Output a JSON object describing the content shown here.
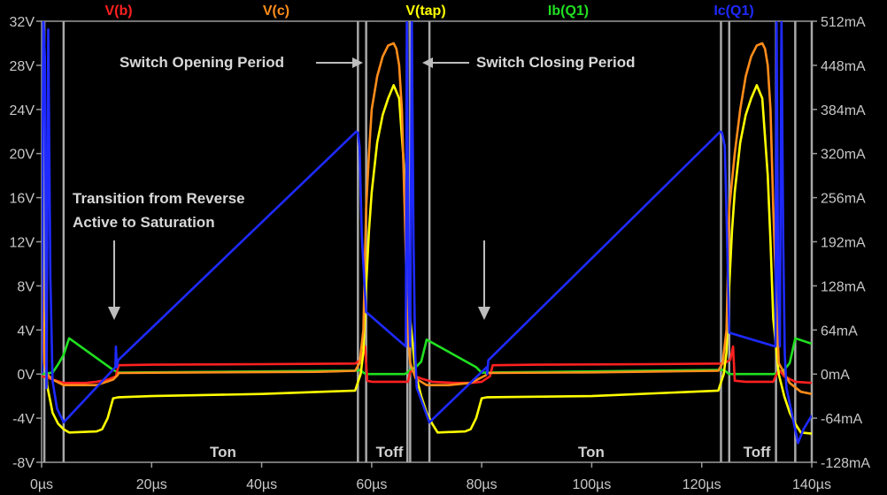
{
  "chart_data": {
    "type": "line",
    "title": "",
    "x_unit": "µs",
    "xlim": [
      0,
      140
    ],
    "x_ticks": [
      "0µs",
      "20µs",
      "40µs",
      "60µs",
      "80µs",
      "100µs",
      "120µs",
      "140µs"
    ],
    "y_left": {
      "ylim": [
        -8,
        32
      ],
      "ticks": [
        "32V",
        "28V",
        "24V",
        "20V",
        "16V",
        "12V",
        "8V",
        "4V",
        "0V",
        "-4V",
        "-8V"
      ]
    },
    "y_right": {
      "ylim": [
        -128,
        512
      ],
      "ticks": [
        "512mA",
        "448mA",
        "384mA",
        "320mA",
        "256mA",
        "192mA",
        "128mA",
        "64mA",
        "0mA",
        "-64mA",
        "-128mA"
      ]
    },
    "grid": false,
    "legend_position": "top",
    "series": [
      {
        "name": "V(b)",
        "color": "#ff2020",
        "axis": "left",
        "x": [
          0,
          1,
          2,
          4,
          6,
          8,
          10,
          12,
          13.5,
          14,
          20,
          40,
          57,
          58,
          58.8,
          59.2,
          60,
          62,
          66,
          66.6,
          67,
          67.5,
          68,
          69,
          71,
          75,
          78,
          80,
          81.5,
          82,
          90,
          110,
          124,
          125.2,
          125.7,
          126,
          128,
          133,
          133.8,
          134.2,
          135,
          137,
          140
        ],
        "y": [
          -0.2,
          -0.3,
          -0.5,
          -0.8,
          -0.8,
          -0.8,
          -0.7,
          -0.5,
          -0.2,
          0.8,
          0.85,
          0.9,
          0.95,
          1.3,
          2.5,
          -0.6,
          -0.7,
          -0.7,
          -0.7,
          -0.7,
          0.2,
          0.3,
          -0.2,
          -0.4,
          -0.7,
          -0.8,
          -0.8,
          -0.7,
          -0.2,
          0.8,
          0.85,
          0.9,
          0.95,
          1.3,
          2.5,
          -0.6,
          -0.7,
          -0.7,
          0.2,
          0.3,
          -0.2,
          -0.7,
          -0.8
        ]
      },
      {
        "name": "V(c)",
        "color": "#ff8c1a",
        "axis": "left",
        "x": [
          0,
          0.5,
          1,
          2,
          4,
          6,
          10,
          13,
          13.8,
          14,
          30,
          50,
          57,
          57.8,
          58.5,
          59,
          59.5,
          60,
          61,
          62,
          63,
          64,
          64.5,
          65,
          65.5,
          66,
          66.5,
          67,
          68,
          70,
          74,
          78,
          80.8,
          81,
          100,
          123,
          123.8,
          124.5,
          125,
          126,
          127,
          128,
          129,
          130,
          131,
          131.5,
          132,
          132.5,
          133,
          134,
          136,
          138,
          140
        ],
        "y": [
          12.5,
          1,
          0,
          -0.5,
          -1,
          -1,
          -1,
          -0.5,
          -0.1,
          0.1,
          0.15,
          0.2,
          0.3,
          1,
          4,
          15,
          20,
          24,
          27,
          28.8,
          29.8,
          30,
          29.5,
          28,
          24,
          15,
          5,
          1,
          -0.4,
          -1,
          -1,
          -0.8,
          -0.1,
          0.1,
          0.15,
          0.3,
          1,
          4,
          15,
          20,
          24,
          27,
          28.8,
          29.8,
          30,
          29.5,
          28,
          24,
          15,
          1,
          -0.8,
          -1.6,
          -1.8
        ]
      },
      {
        "name": "V(tap)",
        "color": "#ffff00",
        "axis": "left",
        "x": [
          0,
          0.5,
          1,
          2,
          3,
          4,
          5,
          10,
          11,
          12,
          13,
          14,
          20,
          40,
          57,
          58,
          58.5,
          59,
          59.5,
          60,
          61,
          62,
          63,
          64,
          65,
          66,
          66.5,
          67,
          68,
          69,
          70,
          71,
          72,
          77,
          78,
          79,
          80,
          81,
          100,
          123,
          124,
          124.5,
          125,
          125.5,
          126,
          127,
          128,
          129,
          130,
          131,
          132,
          132.5,
          133,
          134,
          135,
          136,
          137,
          138,
          140
        ],
        "y": [
          8.5,
          4,
          -1,
          -3.5,
          -4.5,
          -5,
          -5.3,
          -5.2,
          -5,
          -4,
          -2.2,
          -2.1,
          -2,
          -1.8,
          -1.5,
          0,
          2,
          8,
          13,
          16.5,
          21,
          23.5,
          25,
          26.2,
          25,
          18,
          12,
          5,
          0,
          -2,
          -3.5,
          -4.5,
          -5.3,
          -5.2,
          -5,
          -4,
          -2.2,
          -2.1,
          -2,
          -1.5,
          0,
          2,
          8,
          13,
          16.5,
          21,
          23.5,
          25,
          26.2,
          25,
          18,
          12,
          5,
          0,
          -2,
          -3.5,
          -4.5,
          -5.3,
          -5.4
        ]
      },
      {
        "name": "Ib(Q1)",
        "color": "#20e020",
        "axis": "right",
        "x": [
          0,
          2,
          3,
          4,
          5,
          13,
          14,
          57,
          58,
          58.5,
          59,
          66,
          66.5,
          67,
          68,
          69,
          70,
          79,
          80,
          123,
          124,
          125,
          133,
          134,
          135,
          136,
          137,
          140
        ],
        "y": [
          0,
          2,
          14,
          28,
          52,
          6,
          2,
          5,
          6,
          2,
          0,
          0,
          2,
          6,
          10,
          18,
          50,
          10,
          2,
          6,
          6,
          0,
          0,
          2,
          6,
          16,
          52,
          44
        ]
      },
      {
        "name": "Ic(Q1)",
        "color": "#1e2aff",
        "axis": "right",
        "x": [
          0,
          0.3,
          0.6,
          0.9,
          1.2,
          1.6,
          2.0,
          2.8,
          4,
          13.4,
          13.5,
          13.7,
          13.9,
          57.2,
          57.5,
          57.8,
          58.2,
          59,
          66.2,
          66.4,
          66.7,
          67.0,
          67.3,
          67.6,
          67.9,
          68.2,
          70.5,
          80.9,
          81.0,
          81.2,
          123.4,
          123.7,
          124.2,
          124.6,
          125,
          133.4,
          133.6,
          133.9,
          134.2,
          134.5,
          134.8,
          135.1,
          135.4,
          137.5,
          138.5,
          140
        ],
        "y": [
          0,
          520,
          460,
          -20,
          500,
          140,
          -10,
          -50,
          -70,
          10,
          40,
          10,
          20,
          352,
          350,
          330,
          200,
          90,
          40,
          520,
          120,
          40,
          520,
          200,
          30,
          -20,
          -70,
          10,
          0,
          20,
          352,
          350,
          330,
          200,
          60,
          40,
          520,
          120,
          40,
          520,
          200,
          30,
          -20,
          -100,
          -80,
          -60
        ]
      }
    ]
  },
  "annotations": {
    "switch_opening": "Switch Opening Period",
    "switch_closing": "Switch Closing Period",
    "transition_line1": "Transition from Reverse",
    "transition_line2": "Active to Saturation",
    "ton_1": "Ton",
    "toff_1": "Toff",
    "ton_2": "Ton",
    "toff_2": "Toff"
  },
  "cursor_lines_us": [
    0.5,
    4,
    57.5,
    59,
    66.5,
    67,
    70.5,
    123.5,
    125,
    133.5,
    137,
    140
  ]
}
